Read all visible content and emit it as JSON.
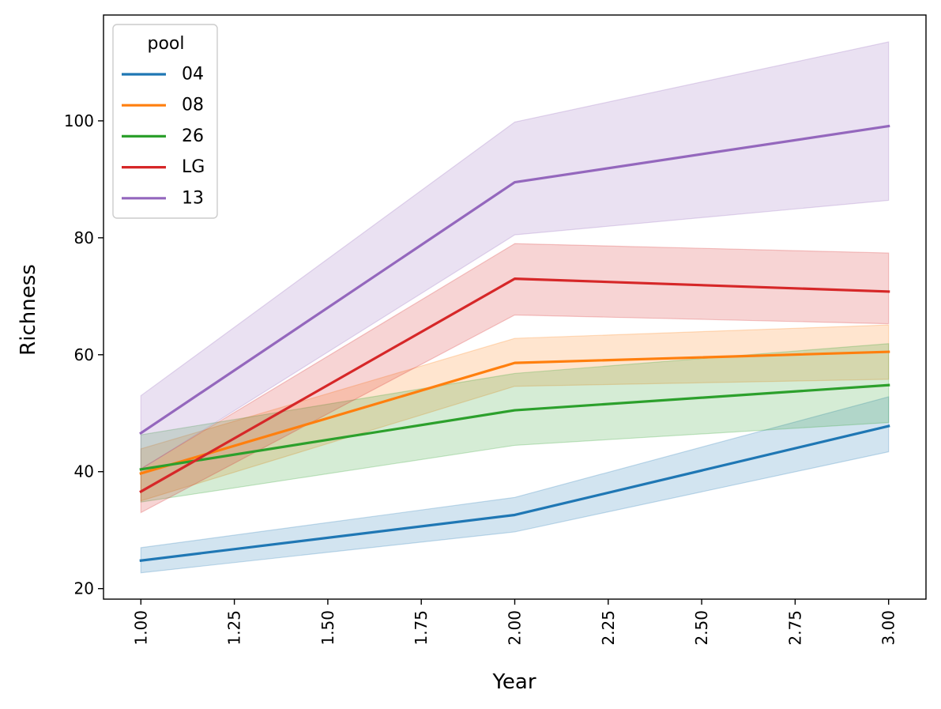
{
  "chart_data": {
    "type": "line",
    "title": "",
    "xlabel": "Year",
    "ylabel": "Richness",
    "xlim": [
      0.9,
      3.1
    ],
    "ylim": [
      18.2,
      118.1
    ],
    "x_ticks": [
      1.0,
      1.25,
      1.5,
      1.75,
      2.0,
      2.25,
      2.5,
      2.75,
      3.0
    ],
    "x_tick_labels": [
      "1.00",
      "1.25",
      "1.50",
      "1.75",
      "2.00",
      "2.25",
      "2.50",
      "2.75",
      "3.00"
    ],
    "y_ticks": [
      20,
      40,
      60,
      80,
      100
    ],
    "y_tick_labels": [
      "20",
      "40",
      "60",
      "80",
      "100"
    ],
    "grid": false,
    "legend": {
      "title": "pool",
      "placement": "top-left"
    },
    "x": [
      1,
      2,
      3
    ],
    "series": [
      {
        "name": "04",
        "color": "#1f77b4",
        "values": [
          24.8,
          32.6,
          47.8
        ],
        "ci_low": [
          22.7,
          29.7,
          43.4
        ],
        "ci_high": [
          27.0,
          35.6,
          52.8
        ]
      },
      {
        "name": "08",
        "color": "#ff7f0e",
        "values": [
          39.7,
          58.6,
          60.5
        ],
        "ci_low": [
          35.0,
          54.6,
          55.8
        ],
        "ci_high": [
          43.9,
          62.8,
          65.1
        ]
      },
      {
        "name": "26",
        "color": "#2ca02c",
        "values": [
          40.4,
          50.5,
          54.8
        ],
        "ci_low": [
          34.8,
          44.5,
          48.4
        ],
        "ci_high": [
          46.3,
          56.8,
          61.9
        ]
      },
      {
        "name": "LG",
        "color": "#d62728",
        "values": [
          36.6,
          73.0,
          70.8
        ],
        "ci_low": [
          33.0,
          66.8,
          65.3
        ],
        "ci_high": [
          40.5,
          79.0,
          77.4
        ]
      },
      {
        "name": "13",
        "color": "#9467bd",
        "values": [
          46.6,
          89.5,
          99.1
        ],
        "ci_low": [
          40.4,
          80.5,
          86.4
        ],
        "ci_high": [
          53.0,
          99.8,
          113.5
        ]
      }
    ]
  }
}
